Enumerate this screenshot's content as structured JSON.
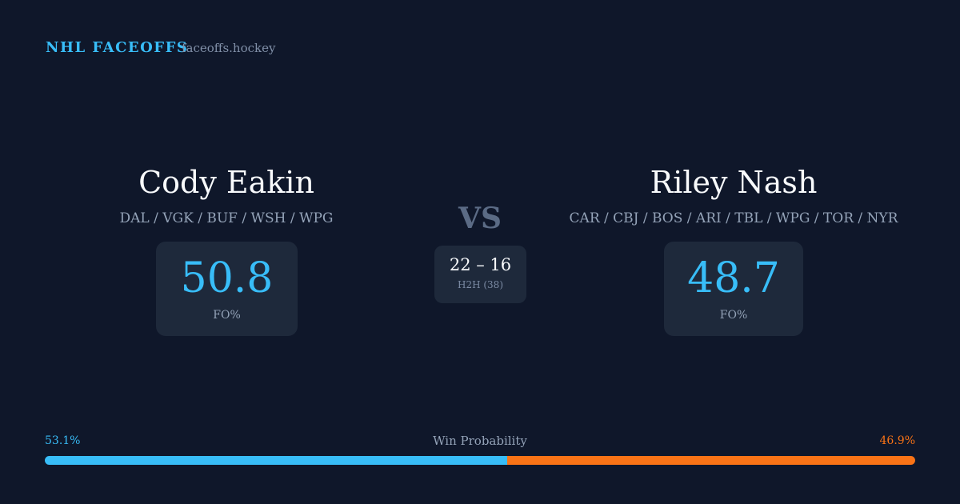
{
  "header": {
    "title": "NHL FACEOFFS",
    "site": "faceoffs.hockey"
  },
  "players": [
    {
      "name": "Cody Eakin",
      "teams": "DAL / VGK / BUF / WSH / WPG",
      "fo_pct": 50.8,
      "fo_label": "FO%"
    },
    {
      "name": "Riley Nash",
      "teams": "CAR / CBJ / BOS / ARI / TBL / WPG / TOR / NYR",
      "fo_pct": 48.7,
      "fo_label": "FO%"
    }
  ],
  "versus": "VS",
  "h2h": {
    "score": "22 – 16",
    "label": "H2H (38)"
  },
  "win_probability": {
    "title": "Win Probability",
    "values": [
      53.1,
      46.9
    ],
    "value_labels": [
      "53.1%",
      "46.9%"
    ],
    "colors": [
      "#38bdf8",
      "#f97316"
    ]
  }
}
